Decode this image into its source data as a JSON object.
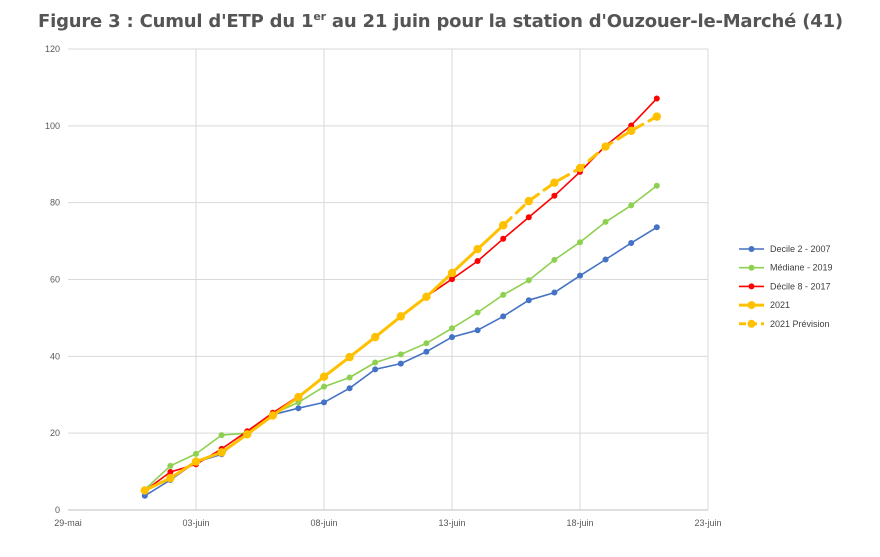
{
  "figure": {
    "title_prefix": "Figure 3 : Cumul d'ETP du 1",
    "title_sup": "er",
    "title_suffix": " au 21 juin pour la station d'Ouzouer-le-Marché (41)"
  },
  "chart_data": {
    "type": "line",
    "title": "Figure 3 : Cumul d'ETP du 1er au 21 juin pour la station d'Ouzouer-le-Marché (41)",
    "xlabel": "",
    "ylabel": "",
    "x_ticks": [
      "29-mai",
      "03-juin",
      "08-juin",
      "13-juin",
      "18-juin",
      "23-juin"
    ],
    "y_ticks": [
      "0",
      "20",
      "40",
      "60",
      "80",
      "100",
      "120"
    ],
    "xlim_days": [
      0,
      25
    ],
    "ylim": [
      0,
      120
    ],
    "grid": true,
    "legend_position": "right",
    "x": [
      "01-juin",
      "02-juin",
      "03-juin",
      "04-juin",
      "05-juin",
      "06-juin",
      "07-juin",
      "08-juin",
      "09-juin",
      "10-juin",
      "11-juin",
      "12-juin",
      "13-juin",
      "14-juin",
      "15-juin",
      "16-juin",
      "17-juin",
      "18-juin",
      "19-juin",
      "20-juin",
      "21-juin"
    ],
    "series": [
      {
        "name": "Decile 2 - 2007",
        "color": "#4472C4",
        "dashed": false,
        "marker": "small",
        "values": [
          3.7,
          7.8,
          12.5,
          14.5,
          20.3,
          24.8,
          26.5,
          28.0,
          31.7,
          36.6,
          38.1,
          41.2,
          45.0,
          46.8,
          50.4,
          54.6,
          56.6,
          61.0,
          65.2,
          69.5,
          73.6
        ]
      },
      {
        "name": "Médiane - 2019",
        "color": "#8ED04F",
        "dashed": false,
        "marker": "small",
        "values": [
          5.3,
          11.5,
          14.6,
          19.5,
          20.0,
          25.0,
          28.0,
          32.1,
          34.5,
          38.4,
          40.5,
          43.4,
          47.3,
          51.4,
          56.0,
          59.8,
          65.1,
          69.7,
          75.0,
          79.3,
          84.4
        ]
      },
      {
        "name": "Décile 8 - 2017",
        "color": "#FF0000",
        "dashed": false,
        "marker": "small",
        "values": [
          5.0,
          9.9,
          11.9,
          15.9,
          20.5,
          25.3,
          29.6,
          34.7,
          39.7,
          44.8,
          50.4,
          55.6,
          60.1,
          64.8,
          70.6,
          76.2,
          81.8,
          88.0,
          94.8,
          100.1,
          107.1
        ]
      },
      {
        "name": "2021",
        "color": "#FFC000",
        "dashed": false,
        "marker": "large",
        "values": [
          5.1,
          8.3,
          12.6,
          15.0,
          19.7,
          24.6,
          29.4,
          34.7,
          39.8,
          45.0,
          50.4,
          55.5,
          61.7,
          67.9,
          74.1,
          null,
          null,
          null,
          null,
          null,
          null
        ]
      },
      {
        "name": "2021 Prévision",
        "color": "#FFC000",
        "dashed": true,
        "marker": "large",
        "values": [
          null,
          null,
          null,
          null,
          null,
          null,
          null,
          null,
          null,
          null,
          null,
          null,
          null,
          null,
          74.1,
          80.4,
          85.2,
          89.0,
          94.6,
          98.7,
          102.4
        ]
      }
    ]
  }
}
